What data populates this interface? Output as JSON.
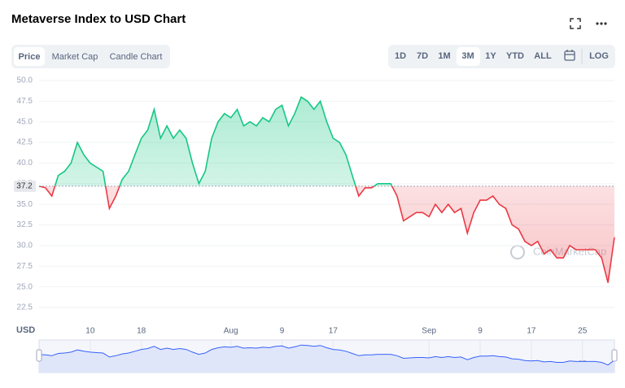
{
  "title": "Metaverse Index to USD Chart",
  "tabs": [
    "Price",
    "Market Cap",
    "Candle Chart"
  ],
  "ranges": [
    "1D",
    "7D",
    "1M",
    "3M",
    "1Y",
    "YTD",
    "ALL"
  ],
  "log_button": "LOG",
  "chart_data": {
    "type": "line",
    "axis_label": "USD",
    "watermark": "CoinMarketCap",
    "baseline": 37.2,
    "color_up": "#16c784",
    "color_down": "#ea3943",
    "x": [
      0,
      1,
      2,
      3,
      4,
      5,
      6,
      7,
      8,
      9,
      10,
      11,
      12,
      13,
      14,
      15,
      16,
      17,
      18,
      19,
      20,
      21,
      22,
      23,
      24,
      25,
      26,
      27,
      28,
      29,
      30,
      31,
      32,
      33,
      34,
      35,
      36,
      37,
      38,
      39,
      40,
      41,
      42,
      43,
      44,
      45,
      46,
      47,
      48,
      49,
      50,
      51,
      52,
      53,
      54,
      55,
      56,
      57,
      58,
      59,
      60,
      61,
      62,
      63,
      64,
      65,
      66,
      67,
      68,
      69,
      70,
      71,
      72,
      73,
      74,
      75,
      76,
      77,
      78,
      79,
      80,
      81,
      82,
      83,
      84,
      85,
      86,
      87,
      88,
      89,
      90
    ],
    "values": [
      37.2,
      37,
      36,
      38.5,
      39,
      40,
      42.5,
      41,
      40,
      39.5,
      39,
      34.5,
      36,
      38,
      39,
      41,
      43,
      44,
      46.5,
      43,
      44.5,
      43,
      44,
      43,
      40,
      37.5,
      39,
      43,
      45,
      46,
      45.5,
      46.5,
      44.5,
      45,
      44.5,
      45.5,
      45,
      46.5,
      47,
      44.5,
      46,
      48,
      47.5,
      46.5,
      47.5,
      45,
      43,
      42.5,
      41,
      38.5,
      36,
      37,
      37,
      37.5,
      37.5,
      37.5,
      36,
      33,
      33.5,
      34,
      34,
      33.5,
      35,
      34,
      35,
      34,
      34.5,
      31.5,
      34,
      35.5,
      35.5,
      36,
      35,
      34.5,
      32.5,
      32,
      30.5,
      30,
      30.5,
      29,
      29.5,
      28.5,
      28.5,
      30,
      29.5,
      29.5,
      29.5,
      29.5,
      28.5,
      25.5,
      31
    ],
    "xlim": [
      0,
      90
    ],
    "xticks": [
      {
        "value": 8,
        "label": "10"
      },
      {
        "value": 16,
        "label": "18"
      },
      {
        "value": 30,
        "label": "Aug"
      },
      {
        "value": 38,
        "label": "9"
      },
      {
        "value": 46,
        "label": "17"
      },
      {
        "value": 61,
        "label": "Sep"
      },
      {
        "value": 69,
        "label": "9"
      },
      {
        "value": 77,
        "label": "17"
      },
      {
        "value": 85,
        "label": "25"
      }
    ],
    "ylim": [
      22.5,
      50
    ],
    "yticks": [
      {
        "value": 22.5,
        "label": "22.5"
      },
      {
        "value": 25,
        "label": "25.0"
      },
      {
        "value": 27.5,
        "label": "27.5"
      },
      {
        "value": 30,
        "label": "30.0"
      },
      {
        "value": 32.5,
        "label": "32.5"
      },
      {
        "value": 35,
        "label": "35.0"
      },
      {
        "value": 37.5,
        "label": "37.5"
      },
      {
        "value": 40,
        "label": "40.0"
      },
      {
        "value": 42.5,
        "label": "42.5"
      },
      {
        "value": 45,
        "label": "45.0"
      },
      {
        "value": 47.5,
        "label": "47.5"
      },
      {
        "value": 50,
        "label": "50.0"
      }
    ],
    "grid": true
  }
}
